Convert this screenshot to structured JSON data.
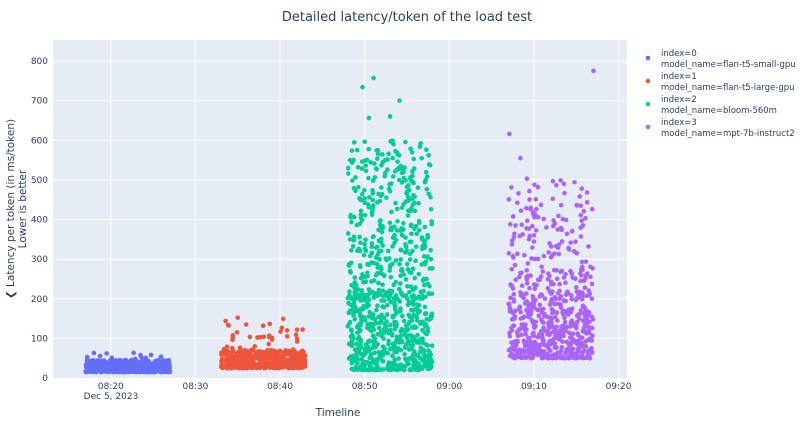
{
  "chart_data": {
    "type": "scatter",
    "title": "Detailed latency/token of the load test",
    "xlabel": "Timeline",
    "ylabel_lines": [
      "❮ Latency per token (in ms/token)",
      "Lower is better"
    ],
    "x_ticks": [
      "08:20",
      "08:30",
      "08:40",
      "08:50",
      "09:00",
      "09:10",
      "09:20"
    ],
    "x_date_label": "Dec 5, 2023",
    "xlim": [
      "08:13:10",
      "09:21:00"
    ],
    "y_ticks": [
      0,
      100,
      200,
      300,
      400,
      500,
      600,
      700,
      800
    ],
    "ylim": [
      0,
      853
    ],
    "grid": true,
    "legend_position": "right",
    "plot_background": "#e5ecf6",
    "series": [
      {
        "name_lines": [
          "index=0",
          "model_name=flan-t5-small-gpu"
        ],
        "color": "#636efa",
        "time_range": [
          "08:17:00",
          "08:27:00"
        ],
        "typical_latency": [
          15,
          45
        ],
        "notable_points": [
          {
            "x": "08:18:00",
            "y": 63
          },
          {
            "x": "08:19:30",
            "y": 62
          },
          {
            "x": "08:23:30",
            "y": 58
          }
        ]
      },
      {
        "name_lines": [
          "index=1",
          "model_name=flan-t5-large-gpu"
        ],
        "color": "#EF553B",
        "time_range": [
          "08:33:00",
          "08:43:00"
        ],
        "typical_latency": [
          25,
          70
        ],
        "notable_points": [
          {
            "x": "08:35:00",
            "y": 152
          },
          {
            "x": "08:36:00",
            "y": 135
          },
          {
            "x": "08:38:00",
            "y": 132
          },
          {
            "x": "08:42:00",
            "y": 122
          }
        ]
      },
      {
        "name_lines": [
          "index=2",
          "model_name=bloom-560m"
        ],
        "color": "#00cc96",
        "time_range": [
          "08:48:00",
          "08:58:00"
        ],
        "typical_latency": [
          20,
          200
        ],
        "notable_points": [
          {
            "x": "08:49:45",
            "y": 734
          },
          {
            "x": "08:51:03",
            "y": 757
          },
          {
            "x": "08:54:07",
            "y": 700
          },
          {
            "x": "08:50:30",
            "y": 656
          },
          {
            "x": "08:53:00",
            "y": 660
          }
        ]
      },
      {
        "name_lines": [
          "index=3",
          "model_name=mpt-7b-instruct2"
        ],
        "color": "#ab63fa",
        "time_range": [
          "09:07:00",
          "09:17:00"
        ],
        "typical_latency": [
          50,
          200
        ],
        "notable_points": [
          {
            "x": "09:17:02",
            "y": 775
          },
          {
            "x": "09:07:06",
            "y": 616
          },
          {
            "x": "09:08:24",
            "y": 555
          },
          {
            "x": "09:09:10",
            "y": 503
          }
        ]
      }
    ]
  }
}
